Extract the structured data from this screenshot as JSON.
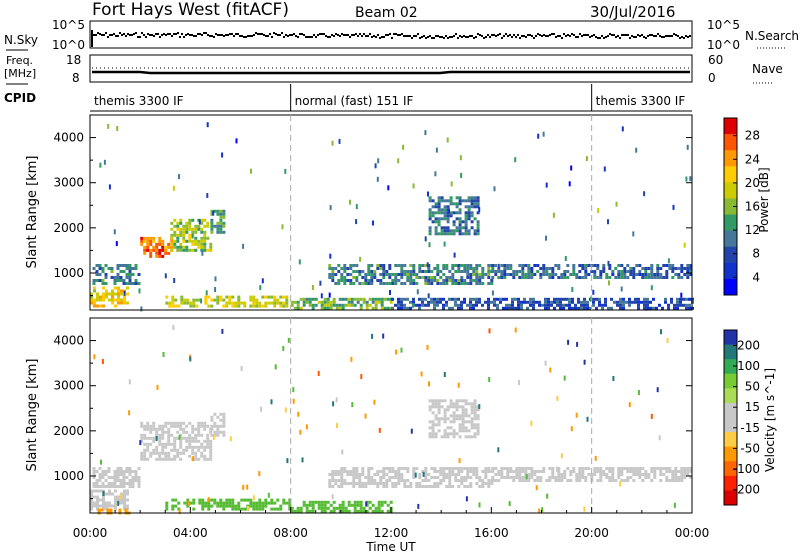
{
  "header": {
    "station": "Fort Hays West (fitACF)",
    "beam": "Beam 02",
    "date": "30/Jul/2016"
  },
  "status": {
    "nsky_label": "N.Sky",
    "nsky_ticks": [
      "10^5",
      "10^0"
    ],
    "nsearch_label": "N.Search",
    "freq_label_1": "Freq.",
    "freq_label_2": "[MHz]",
    "freq_ticks": [
      "18",
      "8"
    ],
    "nave_label": "Nave",
    "nave_ticks": [
      "60",
      "0"
    ],
    "cpid_label": "CPID",
    "cpid_segments": [
      {
        "label": "themis 3300 IF",
        "start_hour": 0,
        "end_hour": 8
      },
      {
        "label": "normal (fast) 151 IF",
        "start_hour": 8,
        "end_hour": 20
      },
      {
        "label": "themis 3300 IF",
        "start_hour": 20,
        "end_hour": 24
      }
    ]
  },
  "power_panel": {
    "ylabel": "Slant Range [km]",
    "colorbar_label": "Power [dB]",
    "colorbar_ticks": [
      "28",
      "24",
      "20",
      "16",
      "12",
      "8",
      "4"
    ],
    "colorbar_colors": [
      "#e00000",
      "#ff5500",
      "#ff9900",
      "#ffcc00",
      "#cccc00",
      "#88bb33",
      "#339966",
      "#447799",
      "#2244aa",
      "#1133cc",
      "#0000ff"
    ]
  },
  "velocity_panel": {
    "ylabel": "Slant Range [km]",
    "colorbar_label": "Velocity [m s^-1]",
    "colorbar_ticks": [
      "200",
      "100",
      "50",
      "15",
      "-15",
      "-50",
      "-100",
      "-200"
    ],
    "colorbar_colors": [
      "#2233aa",
      "#227777",
      "#33aa55",
      "#77cc33",
      "#aadd55",
      "#c8c8c8",
      "#c8c8c8",
      "#ffcc44",
      "#ff9900",
      "#ff6600",
      "#ff2200",
      "#dd0000"
    ]
  },
  "xaxis": {
    "label": "Time UT",
    "ticks": [
      "00:00",
      "04:00",
      "08:00",
      "12:00",
      "16:00",
      "20:00",
      "00:00"
    ]
  },
  "chart_data": [
    {
      "type": "heatmap",
      "title": "Power [dB]",
      "xlabel": "Time UT",
      "ylabel": "Slant Range [km]",
      "xlim": [
        0,
        24
      ],
      "ylim": [
        180,
        4500
      ],
      "yticks": [
        1000,
        2000,
        3000,
        4000
      ],
      "clim": [
        0,
        30
      ],
      "regions": [
        {
          "t0": 0.1,
          "t1": 2.0,
          "r0": 800,
          "r1": 1200,
          "value": 10
        },
        {
          "t0": 0.0,
          "t1": 1.5,
          "r0": 300,
          "r1": 700,
          "value": 20
        },
        {
          "t0": 2.0,
          "t1": 3.2,
          "r0": 1350,
          "r1": 1800,
          "value": 26
        },
        {
          "t0": 3.2,
          "t1": 4.8,
          "r0": 1500,
          "r1": 2200,
          "value": 16
        },
        {
          "t0": 4.8,
          "t1": 5.3,
          "r0": 1900,
          "r1": 2400,
          "value": 12
        },
        {
          "t0": 3.0,
          "t1": 8.0,
          "r0": 250,
          "r1": 500,
          "value": 18
        },
        {
          "t0": 8.0,
          "t1": 12.0,
          "r0": 200,
          "r1": 450,
          "value": 14
        },
        {
          "t0": 9.5,
          "t1": 16.0,
          "r0": 800,
          "r1": 1200,
          "value": 10
        },
        {
          "t0": 13.5,
          "t1": 15.5,
          "r0": 1900,
          "r1": 2700,
          "value": 9
        },
        {
          "t0": 16.0,
          "t1": 24.0,
          "r0": 900,
          "r1": 1200,
          "value": 8
        },
        {
          "t0": 12.0,
          "t1": 24.0,
          "r0": 200,
          "r1": 450,
          "value": 6
        }
      ]
    },
    {
      "type": "heatmap",
      "title": "Velocity [m s^-1]",
      "xlabel": "Time UT",
      "ylabel": "Slant Range [km]",
      "xlim": [
        0,
        24
      ],
      "ylim": [
        180,
        4500
      ],
      "yticks": [
        1000,
        2000,
        3000,
        4000
      ],
      "clim": [
        -200,
        200
      ],
      "regions": [
        {
          "t0": 0.1,
          "t1": 2.0,
          "r0": 800,
          "r1": 1200,
          "value": 0
        },
        {
          "t0": 0.0,
          "t1": 1.5,
          "r0": 300,
          "r1": 700,
          "value": 0
        },
        {
          "t0": 2.0,
          "t1": 4.8,
          "r0": 1350,
          "r1": 2200,
          "value": 0
        },
        {
          "t0": 4.8,
          "t1": 5.3,
          "r0": 1900,
          "r1": 2400,
          "value": 0
        },
        {
          "t0": 3.0,
          "t1": 8.0,
          "r0": 250,
          "r1": 500,
          "value": 40
        },
        {
          "t0": 8.0,
          "t1": 12.0,
          "r0": 200,
          "r1": 450,
          "value": 30
        },
        {
          "t0": 9.5,
          "t1": 16.0,
          "r0": 800,
          "r1": 1200,
          "value": 0
        },
        {
          "t0": 13.5,
          "t1": 15.5,
          "r0": 1900,
          "r1": 2700,
          "value": 0
        },
        {
          "t0": 16.0,
          "t1": 24.0,
          "r0": 900,
          "r1": 1200,
          "value": 0
        },
        {
          "t0": 0.3,
          "t1": 1.5,
          "r0": 180,
          "r1": 280,
          "value": -80
        }
      ]
    }
  ]
}
